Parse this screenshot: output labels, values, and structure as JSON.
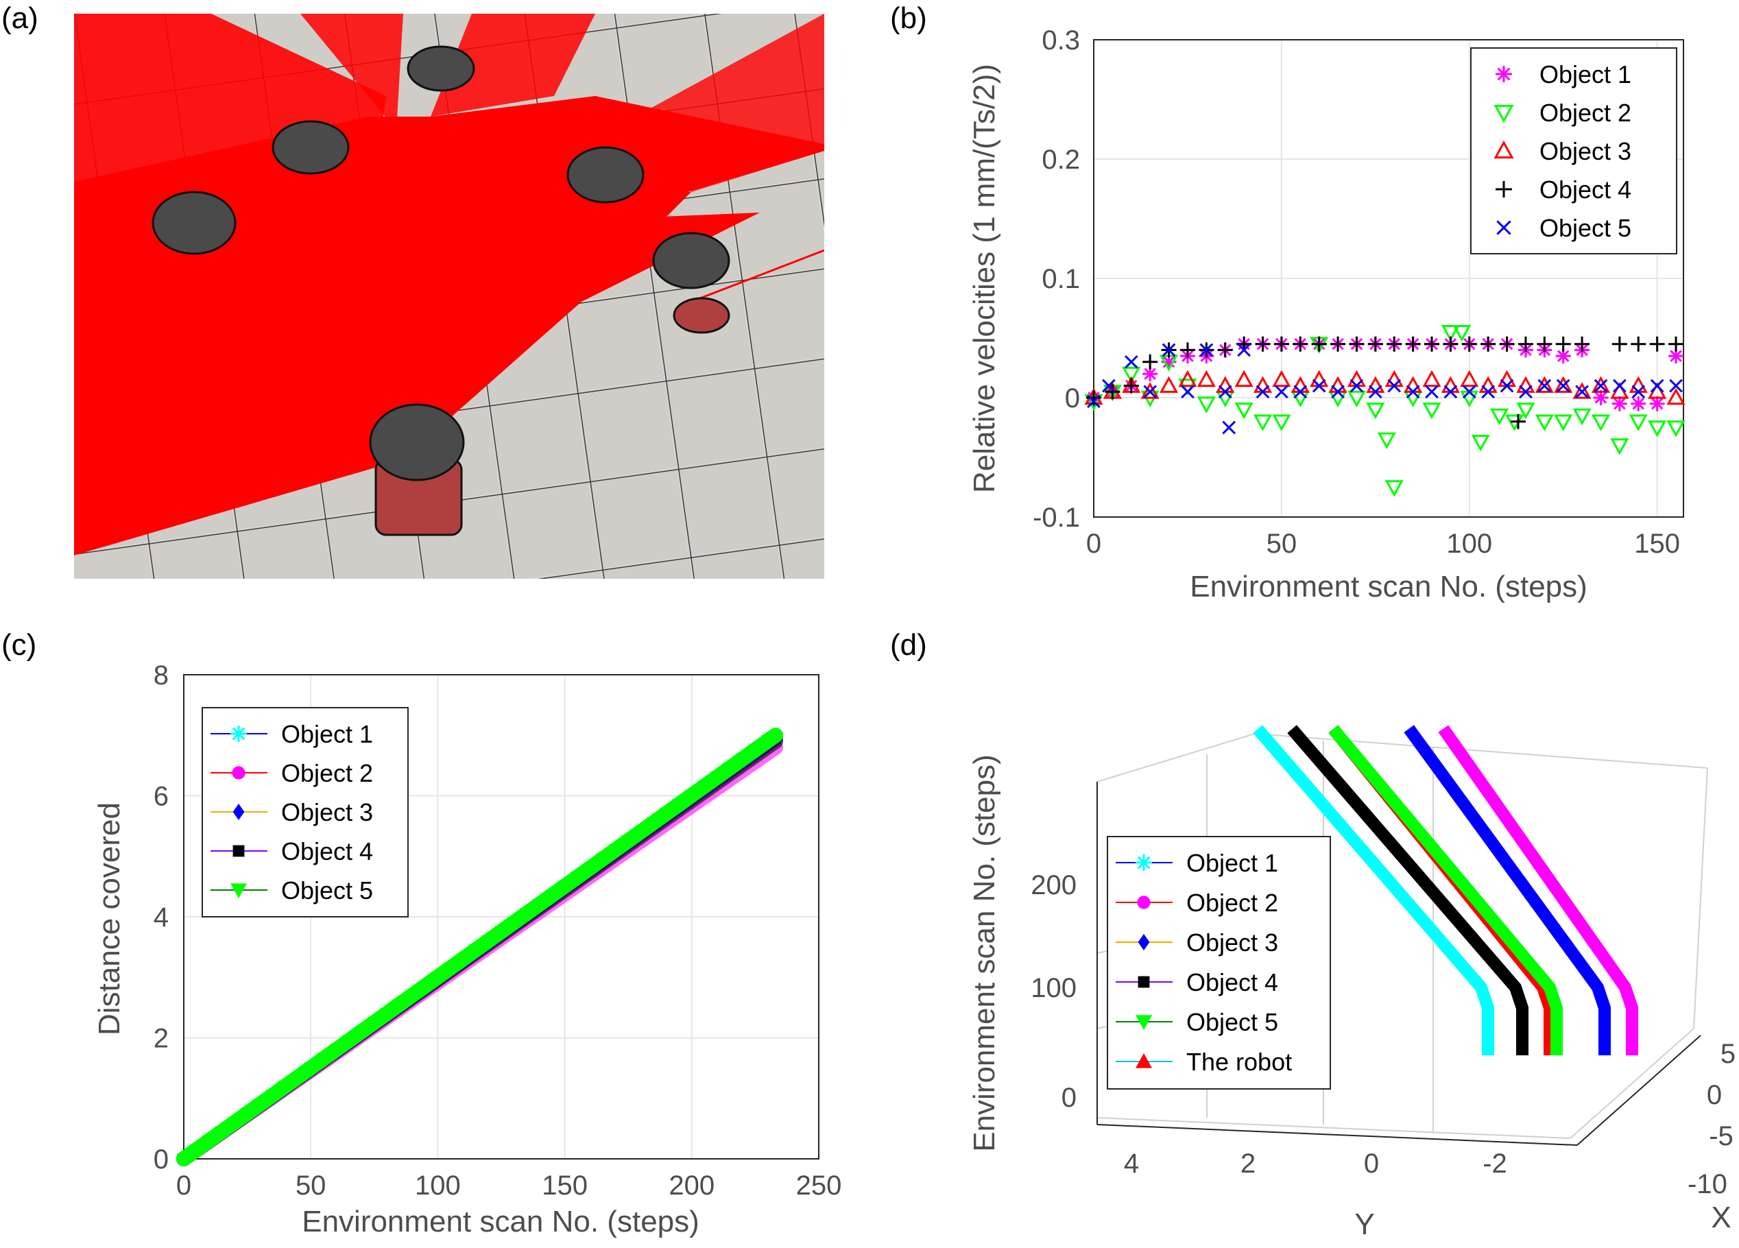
{
  "labels": {
    "a": "(a)",
    "b": "(b)",
    "c": "(c)",
    "d": "(d)"
  },
  "chart_data": [
    {
      "panel": "b",
      "type": "scatter",
      "xlabel": "Environment scan No. (steps)",
      "ylabel": "Relative velocities (1 mm/(Ts/2))",
      "xlim": [
        0,
        157
      ],
      "ylim": [
        -0.1,
        0.3
      ],
      "xticks": [
        "0",
        "50",
        "100",
        "150"
      ],
      "yticks": [
        "-0.1",
        "0",
        "0.1",
        "0.2",
        "0.3"
      ],
      "grid": true,
      "legend": "top-right",
      "series": [
        {
          "name": "Object 1",
          "marker": "asterisk",
          "color": "#ff00ff",
          "x": [
            0,
            5,
            10,
            15,
            20,
            25,
            30,
            35,
            40,
            45,
            50,
            55,
            60,
            65,
            70,
            75,
            80,
            85,
            90,
            95,
            100,
            105,
            110,
            115,
            120,
            125,
            130,
            135,
            140,
            145,
            150,
            155
          ],
          "y": [
            0,
            0.005,
            0.01,
            0.02,
            0.03,
            0.035,
            0.035,
            0.04,
            0.045,
            0.045,
            0.045,
            0.045,
            0.045,
            0.045,
            0.045,
            0.045,
            0.045,
            0.045,
            0.045,
            0.045,
            0.045,
            0.045,
            0.045,
            0.04,
            0.04,
            0.035,
            0.04,
            0.0,
            -0.005,
            -0.005,
            -0.005,
            0.035
          ]
        },
        {
          "name": "Object 2",
          "marker": "triangle-down",
          "color": "#00ff00",
          "x": [
            0,
            5,
            10,
            15,
            20,
            25,
            30,
            35,
            40,
            45,
            50,
            55,
            60,
            65,
            70,
            75,
            78,
            80,
            85,
            90,
            95,
            98,
            100,
            103,
            108,
            112,
            115,
            120,
            125,
            130,
            135,
            140,
            145,
            150,
            155
          ],
          "y": [
            -0.003,
            0.005,
            0.02,
            0.0,
            0.03,
            0.01,
            -0.005,
            0.0,
            -0.01,
            -0.02,
            -0.02,
            0.0,
            0.045,
            0.0,
            0.0,
            -0.01,
            -0.035,
            -0.075,
            0.0,
            -0.01,
            0.055,
            0.055,
            0.0,
            -0.037,
            -0.015,
            -0.02,
            -0.01,
            -0.02,
            -0.02,
            -0.015,
            -0.02,
            -0.04,
            -0.02,
            -0.025,
            -0.025
          ]
        },
        {
          "name": "Object 3",
          "marker": "triangle-up",
          "color": "#ff0000",
          "x": [
            0,
            5,
            10,
            15,
            20,
            25,
            30,
            35,
            40,
            45,
            50,
            55,
            60,
            65,
            70,
            75,
            80,
            85,
            90,
            95,
            100,
            105,
            110,
            115,
            120,
            125,
            130,
            135,
            140,
            145,
            150,
            155
          ],
          "y": [
            0,
            0.005,
            0.01,
            0.005,
            0.01,
            0.015,
            0.015,
            0.01,
            0.015,
            0.01,
            0.015,
            0.01,
            0.015,
            0.01,
            0.015,
            0.01,
            0.015,
            0.01,
            0.015,
            0.01,
            0.015,
            0.01,
            0.015,
            0.01,
            0.01,
            0.01,
            0.005,
            0.01,
            0.005,
            0.01,
            0.005,
            0.0
          ]
        },
        {
          "name": "Object 4",
          "marker": "plus",
          "color": "#000000",
          "x": [
            0,
            5,
            10,
            15,
            20,
            25,
            30,
            35,
            40,
            45,
            50,
            55,
            60,
            65,
            70,
            75,
            80,
            85,
            90,
            95,
            100,
            105,
            110,
            113,
            115,
            120,
            125,
            130,
            140,
            145,
            150,
            155
          ],
          "y": [
            0,
            0.005,
            0.01,
            0.03,
            0.04,
            0.04,
            0.04,
            0.04,
            0.045,
            0.045,
            0.045,
            0.045,
            0.045,
            0.045,
            0.045,
            0.045,
            0.045,
            0.045,
            0.045,
            0.045,
            0.045,
            0.045,
            0.045,
            -0.02,
            0.045,
            0.045,
            0.045,
            0.045,
            0.045,
            0.045,
            0.045,
            0.045
          ]
        },
        {
          "name": "Object 5",
          "marker": "cross",
          "color": "#0000ff",
          "x": [
            0,
            4,
            10,
            15,
            20,
            25,
            30,
            35,
            36,
            40,
            45,
            50,
            55,
            60,
            65,
            70,
            75,
            80,
            85,
            90,
            95,
            100,
            105,
            110,
            115,
            120,
            125,
            130,
            135,
            140,
            145,
            150,
            155
          ],
          "y": [
            -0.003,
            0.01,
            0.03,
            0.005,
            0.04,
            0.005,
            0.04,
            0.005,
            -0.025,
            0.04,
            0.005,
            0.005,
            0.005,
            0.01,
            0.005,
            0.01,
            0.005,
            0.01,
            0.005,
            0.005,
            0.005,
            0.005,
            0.005,
            0.01,
            0.005,
            0.01,
            0.01,
            0.005,
            0.01,
            0.01,
            0.005,
            0.01,
            0.01
          ]
        }
      ]
    },
    {
      "panel": "c",
      "type": "line",
      "xlabel": "Environment scan No. (steps)",
      "ylabel": "Distance covered",
      "xlim": [
        0,
        250
      ],
      "ylim": [
        0,
        8
      ],
      "xticks": [
        "0",
        "50",
        "100",
        "150",
        "200",
        "250"
      ],
      "yticks": [
        "0",
        "2",
        "4",
        "6",
        "8"
      ],
      "grid": true,
      "legend": "top-left",
      "series": [
        {
          "name": "Object 1",
          "marker": "asterisk",
          "color": "#00ffff",
          "line": "#0000ff",
          "x": [
            0,
            233
          ],
          "y": [
            0,
            7.0
          ]
        },
        {
          "name": "Object 2",
          "marker": "circle",
          "color": "#ff00ff",
          "line": "#ff0000",
          "x": [
            0,
            233
          ],
          "y": [
            0,
            6.8
          ]
        },
        {
          "name": "Object 3",
          "marker": "diamond",
          "color": "#0000ff",
          "line": "#ffa500",
          "x": [
            0,
            233
          ],
          "y": [
            0,
            6.95
          ]
        },
        {
          "name": "Object 4",
          "marker": "square",
          "color": "#000000",
          "line": "#8000ff",
          "x": [
            0,
            233
          ],
          "y": [
            0,
            6.9
          ]
        },
        {
          "name": "Object 5",
          "marker": "triangle-down",
          "color": "#00ff00",
          "line": "#008000",
          "x": [
            0,
            233
          ],
          "y": [
            0,
            7.0
          ]
        }
      ]
    },
    {
      "panel": "d",
      "type": "line",
      "projection": "3d",
      "xlabel": "X",
      "ylabel": "Y",
      "zlabel": "Environment scan No. (steps)",
      "xticks": [
        "-10",
        "-5",
        "0",
        "5"
      ],
      "yticks": [
        "4",
        "2",
        "0",
        "-2"
      ],
      "zticks": [
        "0",
        "100",
        "200"
      ],
      "grid": true,
      "legend": "left",
      "series": [
        {
          "name": "Object 1",
          "marker": "asterisk",
          "color": "#00ffff"
        },
        {
          "name": "Object 2",
          "marker": "circle",
          "color": "#ff00ff"
        },
        {
          "name": "Object 3",
          "marker": "diamond",
          "color": "#0000ff"
        },
        {
          "name": "Object 4",
          "marker": "square",
          "color": "#000000"
        },
        {
          "name": "Object 5",
          "marker": "triangle-down",
          "color": "#00ff00"
        },
        {
          "name": "The robot",
          "marker": "triangle-up",
          "color": "#ff0000"
        }
      ]
    }
  ]
}
